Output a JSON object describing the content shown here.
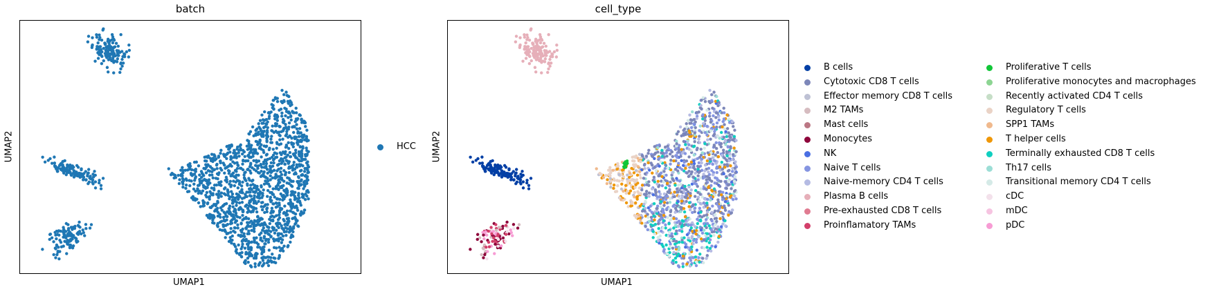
{
  "chart_data": [
    {
      "type": "scatter",
      "title": "batch",
      "xlabel": "UMAP1",
      "ylabel": "UMAP2",
      "legend": {
        "placement": "right",
        "entries": [
          {
            "label": "HCC",
            "color": "#1f77b4"
          }
        ]
      },
      "clusters": [
        {
          "name": "HCC",
          "regions": [
            "top-left small cluster",
            "left cluster",
            "bottom-left cluster",
            "large right cluster"
          ]
        }
      ]
    },
    {
      "type": "scatter",
      "title": "cell_type",
      "xlabel": "UMAP1",
      "ylabel": "UMAP2",
      "legend": {
        "placement": "right",
        "columns": 2,
        "entries": [
          {
            "label": "B cells",
            "color": "#023fa5"
          },
          {
            "label": "Cytotoxic CD8 T cells",
            "color": "#7d87b9"
          },
          {
            "label": "Effector memory CD8 T cells",
            "color": "#bec1d4"
          },
          {
            "label": "M2 TAMs",
            "color": "#d6bcc0"
          },
          {
            "label": "Mast cells",
            "color": "#bb7784"
          },
          {
            "label": "Monocytes",
            "color": "#8e063b"
          },
          {
            "label": "NK",
            "color": "#4a6fe3"
          },
          {
            "label": "Naive T cells",
            "color": "#8595e1"
          },
          {
            "label": "Naive-memory CD4 T cells",
            "color": "#b5bbe3"
          },
          {
            "label": "Plasma B cells",
            "color": "#e6afb9"
          },
          {
            "label": "Pre-exhausted CD8 T cells",
            "color": "#e07b91"
          },
          {
            "label": "Proinflamatory TAMs",
            "color": "#d33f6a"
          },
          {
            "label": "Proliferative T cells",
            "color": "#11c638"
          },
          {
            "label": "Proliferative monocytes and macrophages",
            "color": "#8dd593"
          },
          {
            "label": "Recently activated CD4 T cells",
            "color": "#c6dec7"
          },
          {
            "label": "Regulatory T cells",
            "color": "#ead3c6"
          },
          {
            "label": "SPP1 TAMs",
            "color": "#f0b98d"
          },
          {
            "label": "T helper cells",
            "color": "#ef9708"
          },
          {
            "label": "Terminally exhausted CD8 T cells",
            "color": "#0fcfc0"
          },
          {
            "label": "Th17 cells",
            "color": "#9cded6"
          },
          {
            "label": "Transitional memory CD4 T cells",
            "color": "#d5eae7"
          },
          {
            "label": "cDC",
            "color": "#f3e1eb"
          },
          {
            "label": "mDC",
            "color": "#f6c4e1"
          },
          {
            "label": "pDC",
            "color": "#f79cd4"
          }
        ]
      }
    }
  ]
}
